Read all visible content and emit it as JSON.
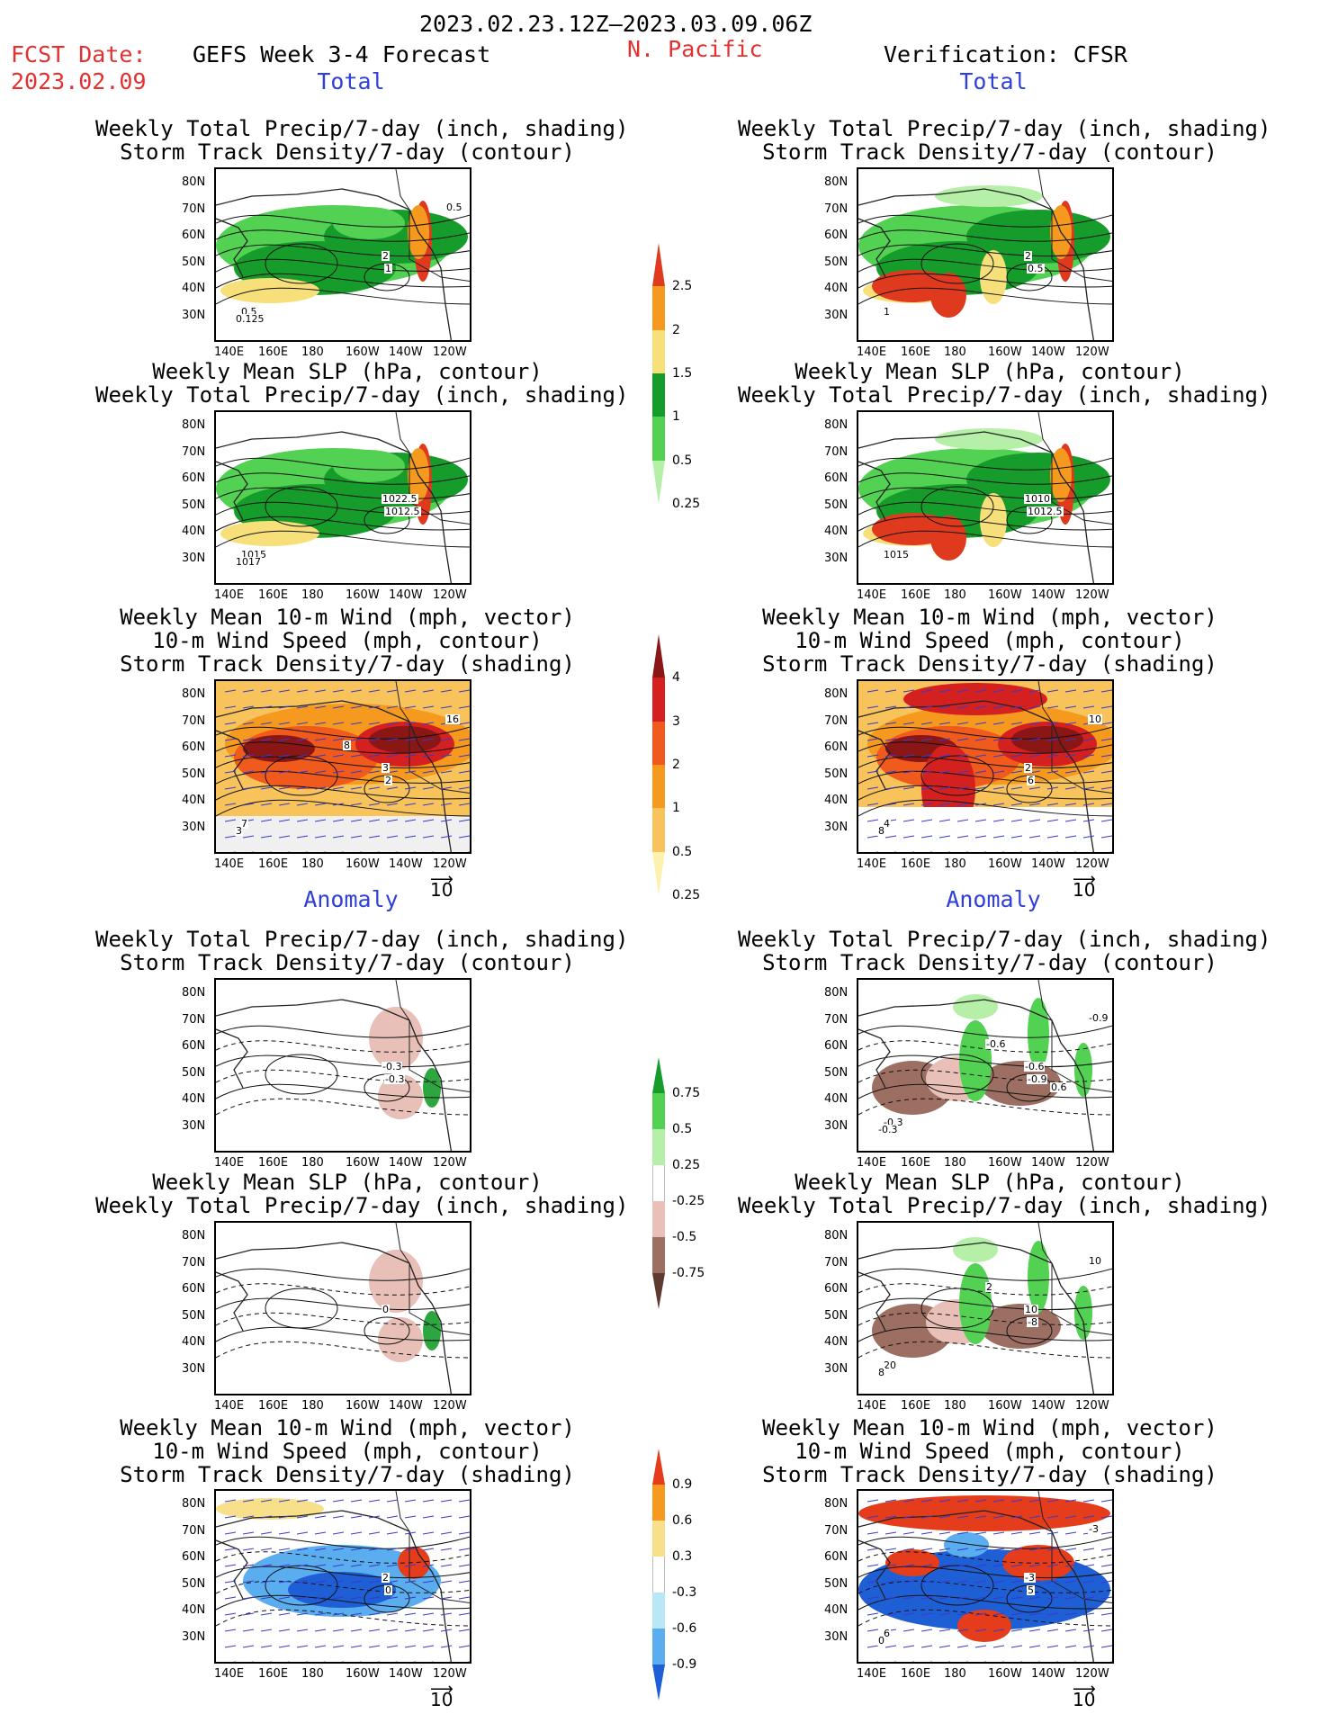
{
  "header": {
    "period": "2023.02.23.12Z–2023.03.09.06Z",
    "fcst_label": "FCST Date:",
    "fcst_date": "2023.02.09",
    "model": "GEFS Week 3-4 Forecast",
    "region": "N. Pacific",
    "verification": "Verification: CFSR"
  },
  "sections": {
    "total": "Total",
    "anomaly": "Anomaly"
  },
  "titles": {
    "precip_storm": [
      "Weekly Total Precip/7-day (inch, shading)",
      "Storm Track Density/7-day (contour)"
    ],
    "slp_precip": [
      "Weekly Mean SLP (hPa, contour)",
      "Weekly Total Precip/7-day (inch, shading)"
    ],
    "wind_storm": [
      "Weekly Mean 10-m Wind (mph, vector)",
      "10-m Wind Speed (mph, contour)",
      "Storm Track Density/7-day (shading)"
    ]
  },
  "axes": {
    "lat": [
      "80N",
      "70N",
      "60N",
      "50N",
      "40N",
      "30N"
    ],
    "lon": [
      "140E",
      "160E",
      "180",
      "160W",
      "140W",
      "120W"
    ]
  },
  "vector_ref": "10",
  "colorbars": {
    "precip_total": {
      "labels": [
        "2.5",
        "2",
        "1.5",
        "1",
        "0.5",
        "0.25"
      ],
      "colors": [
        "#e03a1e",
        "#f59a1e",
        "#f7e07a",
        "#169c2a",
        "#52d152",
        "#b6f0a8"
      ]
    },
    "storm_total": {
      "labels": [
        "4",
        "3",
        "2",
        "1",
        "0.5",
        "0.25"
      ],
      "colors": [
        "#8a1616",
        "#d52020",
        "#f05a1c",
        "#f59a1e",
        "#f8c35a",
        "#fbf2b0"
      ]
    },
    "precip_anom": {
      "labels": [
        "0.75",
        "0.5",
        "0.25",
        "-0.25",
        "-0.5",
        "-0.75"
      ],
      "colors": [
        "#169c2a",
        "#52d152",
        "#b6f0a8",
        "#ffffff",
        "#e8c0b8",
        "#9c6f62",
        "#5e3a30"
      ]
    },
    "storm_anom": {
      "labels": [
        "0.9",
        "0.6",
        "0.3",
        "-0.3",
        "-0.6",
        "-0.9"
      ],
      "colors": [
        "#e53c1c",
        "#f59a1e",
        "#f8e08a",
        "#ffffff",
        "#b8e8f5",
        "#5aaef0",
        "#1f5fd6"
      ]
    }
  },
  "panel_labels": {
    "p1": [
      "2",
      "1",
      "0.5",
      "0.125",
      "0.5"
    ],
    "p2": [
      "1022.5",
      "1012.5",
      "1015",
      "1017"
    ],
    "p3": [
      "3",
      "2",
      "7",
      "3",
      "16",
      "8"
    ],
    "p4": [
      "-0.3",
      "-0.3"
    ],
    "p5": [
      "0"
    ],
    "p6": [
      "2",
      "0"
    ],
    "r1": [
      "2",
      "0.5",
      "1"
    ],
    "r2": [
      "1010",
      "1012.5",
      "1015"
    ],
    "r3": [
      "2",
      "6",
      "4",
      "8",
      "10"
    ],
    "r4": [
      "-0.6",
      "-0.9",
      "-0.3",
      "-0.3",
      "-0.9",
      "-0.6",
      "0.6"
    ],
    "r5": [
      "10",
      "-8",
      "20",
      "8",
      "10",
      "2"
    ],
    "r6": [
      "-3",
      "5",
      "6",
      "0",
      "-3"
    ]
  }
}
